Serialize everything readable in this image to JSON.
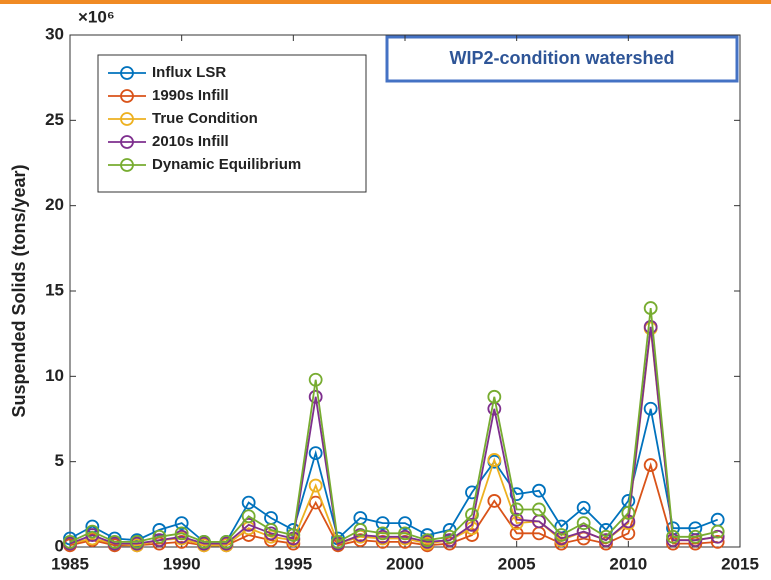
{
  "chart_data": {
    "type": "line",
    "annotation": "WIP2-condition watershed",
    "y_label": "Suspended Solids (tons/year)",
    "y_exponent": "×10⁶",
    "x": [
      1985,
      1986,
      1987,
      1988,
      1989,
      1990,
      1991,
      1992,
      1993,
      1994,
      1995,
      1996,
      1997,
      1998,
      1999,
      2000,
      2001,
      2002,
      2003,
      2004,
      2005,
      2006,
      2007,
      2008,
      2009,
      2010,
      2011,
      2012,
      2013,
      2014
    ],
    "series": [
      {
        "name": "Influx LSR",
        "color": "#0072BD",
        "values": [
          0.5,
          1.2,
          0.5,
          0.4,
          1.0,
          1.4,
          0.3,
          0.3,
          2.6,
          1.7,
          1.0,
          5.5,
          0.5,
          1.7,
          1.4,
          1.4,
          0.7,
          1.0,
          3.2,
          5.0,
          3.1,
          3.3,
          1.2,
          2.3,
          1.0,
          2.7,
          8.1,
          1.1,
          1.1,
          1.6
        ]
      },
      {
        "name": "1990s Infill",
        "color": "#D95319",
        "values": [
          0.1,
          0.4,
          0.1,
          0.1,
          0.2,
          0.3,
          0.1,
          0.1,
          0.7,
          0.4,
          0.2,
          2.6,
          0.1,
          0.4,
          0.3,
          0.3,
          0.1,
          0.2,
          0.7,
          2.7,
          0.8,
          0.8,
          0.2,
          0.5,
          0.2,
          0.8,
          4.8,
          0.2,
          0.2,
          0.3
        ]
      },
      {
        "name": "True Condition",
        "color": "#EDB120",
        "values": [
          0.2,
          0.5,
          0.2,
          0.1,
          0.4,
          0.5,
          0.1,
          0.1,
          1.1,
          0.6,
          0.4,
          3.6,
          0.2,
          0.6,
          0.5,
          0.5,
          0.2,
          0.4,
          1.1,
          5.1,
          1.4,
          1.5,
          0.4,
          0.9,
          0.4,
          1.4,
          12.8,
          0.4,
          0.4,
          0.6
        ]
      },
      {
        "name": "2010s Infill",
        "color": "#7E2F8E",
        "values": [
          0.2,
          0.7,
          0.2,
          0.2,
          0.4,
          0.6,
          0.2,
          0.2,
          1.3,
          0.8,
          0.5,
          8.8,
          0.2,
          0.7,
          0.6,
          0.6,
          0.3,
          0.4,
          1.3,
          8.1,
          1.6,
          1.5,
          0.5,
          0.9,
          0.4,
          1.5,
          12.9,
          0.4,
          0.4,
          0.6
        ]
      },
      {
        "name": "Dynamic Equilibrium",
        "color": "#77AC30",
        "values": [
          0.3,
          0.9,
          0.3,
          0.3,
          0.6,
          0.8,
          0.3,
          0.3,
          1.8,
          1.0,
          0.7,
          9.8,
          0.3,
          1.0,
          0.8,
          0.8,
          0.4,
          0.6,
          1.9,
          8.8,
          2.2,
          2.2,
          0.7,
          1.4,
          0.6,
          2.0,
          14.0,
          0.6,
          0.6,
          0.9
        ]
      }
    ],
    "xlim": [
      1985,
      2015
    ],
    "ylim": [
      0,
      30
    ],
    "xticks": [
      1985,
      1990,
      1995,
      2000,
      2005,
      2010,
      2015
    ],
    "yticks": [
      0,
      5,
      10,
      15,
      20,
      25,
      30
    ],
    "grid": false,
    "legend": "top-left"
  }
}
